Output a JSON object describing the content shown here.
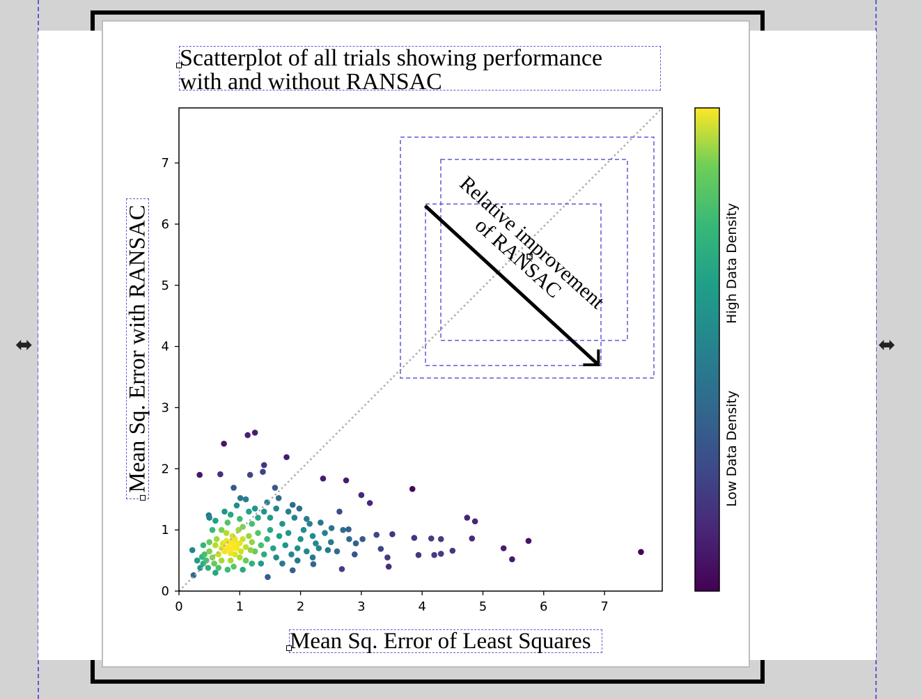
{
  "chart_data": {
    "type": "scatter",
    "title": "Scatterplot of all trials showing performance with and without RANSAC",
    "title_lines": [
      "Scatterplot of all trials showing performance",
      "with and without RANSAC"
    ],
    "xlabel": "Mean Sq. Error of Least Squares",
    "ylabel": "Mean Sq. Error with RANSAC",
    "xlim": [
      0,
      7.95
    ],
    "ylim": [
      0,
      7.9
    ],
    "xticks": [
      "0",
      "1",
      "2",
      "3",
      "4",
      "5",
      "6",
      "7"
    ],
    "yticks": [
      "0",
      "1",
      "2",
      "3",
      "4",
      "5",
      "6",
      "7"
    ],
    "grid": false,
    "reference_line": {
      "style": "dotted",
      "color": "#aaaaaa",
      "from": [
        0,
        0
      ],
      "to": [
        7.95,
        7.9
      ]
    },
    "colormap": "viridis",
    "colorbar": {
      "low_label": "Low Data Density",
      "high_label": "High Data Density"
    },
    "annotation": {
      "text_lines": [
        "Relative improvement",
        "of RANSAC"
      ],
      "arrow_from": [
        4.05,
        6.3
      ],
      "arrow_to": [
        6.9,
        3.7
      ]
    },
    "points": [
      [
        0.74,
        2.41
      ],
      [
        1.13,
        2.55
      ],
      [
        1.25,
        2.59
      ],
      [
        1.77,
        2.19
      ],
      [
        0.34,
        1.9
      ],
      [
        0.68,
        1.91
      ],
      [
        1.4,
        2.06
      ],
      [
        1.38,
        1.95
      ],
      [
        1.17,
        1.9
      ],
      [
        2.37,
        1.84
      ],
      [
        2.75,
        1.81
      ],
      [
        3.84,
        1.67
      ],
      [
        3.14,
        1.44
      ],
      [
        3.0,
        1.57
      ],
      [
        4.74,
        1.2
      ],
      [
        4.87,
        1.14
      ],
      [
        3.87,
        0.87
      ],
      [
        4.15,
        0.86
      ],
      [
        4.31,
        0.85
      ],
      [
        4.82,
        0.86
      ],
      [
        5.75,
        0.82
      ],
      [
        5.34,
        0.7
      ],
      [
        5.48,
        0.52
      ],
      [
        7.6,
        0.64
      ],
      [
        3.94,
        0.59
      ],
      [
        4.2,
        0.59
      ],
      [
        4.31,
        0.61
      ],
      [
        4.5,
        0.66
      ],
      [
        3.45,
        0.4
      ],
      [
        3.43,
        0.55
      ],
      [
        3.51,
        0.93
      ],
      [
        3.32,
        0.69
      ],
      [
        1.46,
        0.23
      ],
      [
        0.24,
        0.26
      ],
      [
        0.22,
        0.67
      ],
      [
        1.87,
        0.34
      ],
      [
        2.68,
        0.36
      ],
      [
        2.21,
        0.44
      ],
      [
        2.89,
        0.6
      ],
      [
        3.02,
        0.85
      ],
      [
        2.79,
        1.01
      ],
      [
        3.25,
        0.92
      ],
      [
        2.51,
        1.03
      ],
      [
        2.33,
        1.12
      ],
      [
        2.64,
        1.3
      ],
      [
        2.1,
        1.18
      ],
      [
        1.98,
        1.35
      ],
      [
        2.25,
        0.78
      ],
      [
        2.45,
        0.67
      ],
      [
        2.91,
        0.78
      ],
      [
        1.64,
        1.52
      ],
      [
        1.87,
        1.41
      ],
      [
        1.58,
        1.69
      ],
      [
        0.9,
        1.69
      ],
      [
        1.01,
        1.52
      ],
      [
        0.49,
        1.24
      ],
      [
        1.18,
        0.67
      ],
      [
        0.38,
        0.56
      ],
      [
        0.9,
        0.75
      ],
      [
        0.85,
        0.8
      ],
      [
        0.95,
        0.7
      ],
      [
        0.8,
        0.72
      ],
      [
        1.0,
        0.78
      ],
      [
        0.75,
        0.65
      ],
      [
        1.05,
        0.85
      ],
      [
        0.7,
        0.7
      ],
      [
        0.88,
        0.9
      ],
      [
        0.92,
        0.6
      ],
      [
        1.1,
        0.72
      ],
      [
        0.65,
        0.6
      ],
      [
        0.6,
        0.75
      ],
      [
        1.15,
        0.9
      ],
      [
        0.78,
        0.95
      ],
      [
        1.2,
        0.8
      ],
      [
        0.55,
        0.55
      ],
      [
        0.7,
        0.5
      ],
      [
        1.0,
        0.55
      ],
      [
        1.25,
        0.65
      ],
      [
        0.5,
        0.65
      ],
      [
        0.62,
        0.85
      ],
      [
        0.98,
        1.0
      ],
      [
        1.3,
        0.95
      ],
      [
        0.45,
        0.5
      ],
      [
        0.58,
        0.45
      ],
      [
        0.85,
        0.5
      ],
      [
        1.1,
        0.5
      ],
      [
        1.35,
        0.75
      ],
      [
        1.4,
        0.6
      ],
      [
        0.5,
        0.8
      ],
      [
        0.7,
        1.0
      ],
      [
        1.05,
        1.05
      ],
      [
        1.2,
        1.1
      ],
      [
        0.4,
        0.45
      ],
      [
        0.48,
        0.38
      ],
      [
        0.65,
        0.38
      ],
      [
        0.9,
        0.4
      ],
      [
        1.2,
        0.45
      ],
      [
        1.45,
        0.85
      ],
      [
        1.5,
        1.0
      ],
      [
        1.55,
        0.7
      ],
      [
        0.42,
        0.6
      ],
      [
        0.55,
        1.0
      ],
      [
        0.8,
        1.12
      ],
      [
        1.0,
        1.18
      ],
      [
        1.3,
        1.2
      ],
      [
        0.35,
        0.38
      ],
      [
        0.6,
        0.3
      ],
      [
        0.8,
        0.35
      ],
      [
        1.05,
        0.35
      ],
      [
        1.35,
        0.45
      ],
      [
        1.6,
        0.55
      ],
      [
        1.65,
        0.9
      ],
      [
        1.7,
        1.1
      ],
      [
        0.6,
        1.15
      ],
      [
        0.85,
        1.25
      ],
      [
        1.15,
        1.3
      ],
      [
        1.4,
        1.3
      ],
      [
        1.75,
        0.75
      ],
      [
        1.8,
        0.95
      ],
      [
        1.85,
        0.6
      ],
      [
        1.9,
        1.2
      ],
      [
        2.0,
        0.85
      ],
      [
        2.05,
        1.0
      ],
      [
        1.95,
        0.7
      ],
      [
        0.75,
        1.3
      ],
      [
        1.25,
        1.35
      ],
      [
        1.5,
        1.2
      ],
      [
        1.6,
        1.35
      ],
      [
        1.8,
        1.3
      ],
      [
        2.1,
        0.65
      ],
      [
        2.2,
        0.9
      ],
      [
        2.15,
        1.1
      ],
      [
        0.5,
        1.2
      ],
      [
        0.3,
        0.5
      ],
      [
        0.4,
        0.75
      ],
      [
        1.7,
        0.45
      ],
      [
        1.95,
        0.5
      ],
      [
        2.3,
        0.7
      ],
      [
        2.4,
        0.95
      ],
      [
        2.5,
        0.8
      ],
      [
        2.6,
        0.65
      ],
      [
        2.7,
        1.0
      ],
      [
        2.2,
        0.55
      ],
      [
        2.8,
        0.85
      ],
      [
        0.95,
        1.4
      ],
      [
        1.1,
        1.5
      ],
      [
        1.45,
        1.45
      ],
      [
        0.85,
        0.62
      ],
      [
        0.78,
        0.82
      ],
      [
        0.92,
        0.85
      ],
      [
        1.02,
        0.65
      ],
      [
        0.72,
        0.78
      ],
      [
        0.82,
        0.68
      ],
      [
        0.95,
        0.78
      ],
      [
        0.88,
        0.7
      ]
    ]
  },
  "editor": {
    "resize_left_icon": "double-arrow-horizontal",
    "resize_right_icon": "double-arrow-horizontal",
    "selection_color": "#5b5bd6"
  }
}
